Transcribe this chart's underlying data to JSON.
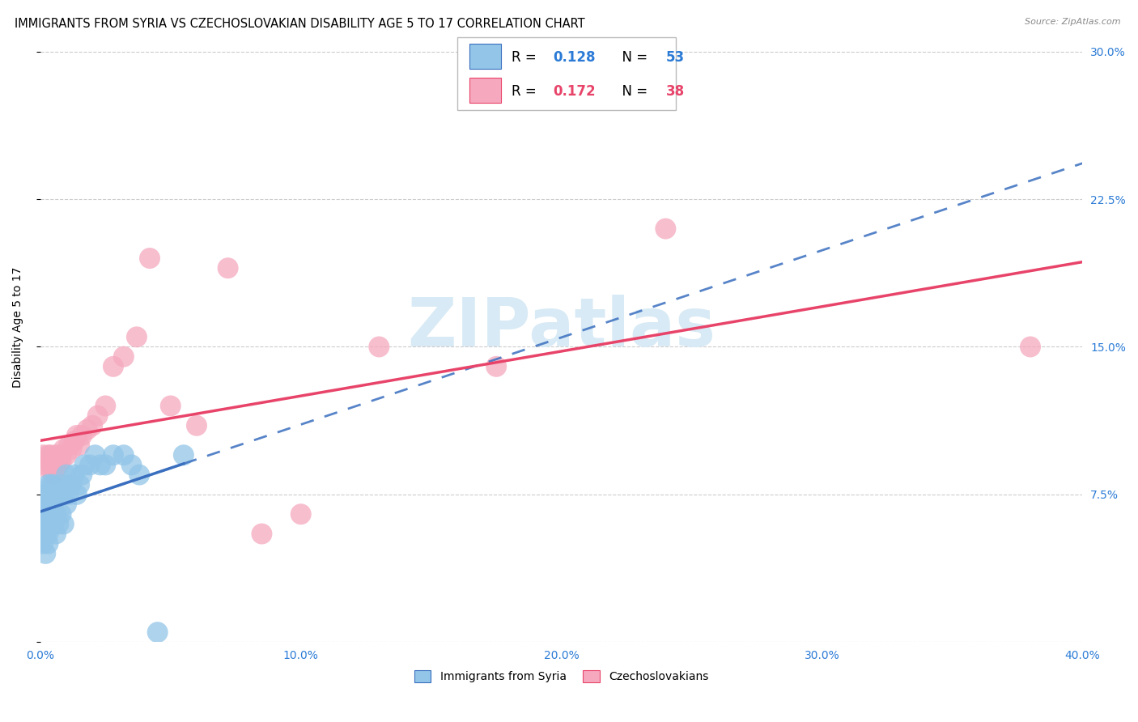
{
  "title": "IMMIGRANTS FROM SYRIA VS CZECHOSLOVAKIAN DISABILITY AGE 5 TO 17 CORRELATION CHART",
  "source": "Source: ZipAtlas.com",
  "ylabel": "Disability Age 5 to 17",
  "xlim": [
    0.0,
    0.4
  ],
  "ylim": [
    0.0,
    0.32
  ],
  "xticks": [
    0.0,
    0.1,
    0.2,
    0.3,
    0.4
  ],
  "xtick_labels": [
    "0.0%",
    "10.0%",
    "20.0%",
    "30.0%",
    "40.0%"
  ],
  "ytick_labels_right": [
    "",
    "7.5%",
    "15.0%",
    "22.5%",
    "30.0%"
  ],
  "yticks_right": [
    0.0,
    0.075,
    0.15,
    0.225,
    0.3
  ],
  "color_syria": "#92C5E8",
  "color_czech": "#F5A8BE",
  "color_syria_line": "#3A6FBF",
  "color_czech_line": "#E8446A",
  "color_grid": "#CCCCCC",
  "watermark_color": "#D8EAF5",
  "syria_x": [
    0.001,
    0.001,
    0.001,
    0.001,
    0.002,
    0.002,
    0.002,
    0.002,
    0.002,
    0.002,
    0.003,
    0.003,
    0.003,
    0.003,
    0.003,
    0.003,
    0.004,
    0.004,
    0.004,
    0.004,
    0.004,
    0.005,
    0.005,
    0.005,
    0.005,
    0.006,
    0.006,
    0.006,
    0.007,
    0.007,
    0.008,
    0.008,
    0.009,
    0.009,
    0.01,
    0.01,
    0.011,
    0.012,
    0.013,
    0.014,
    0.015,
    0.016,
    0.017,
    0.019,
    0.021,
    0.023,
    0.025,
    0.028,
    0.032,
    0.035,
    0.038,
    0.045,
    0.055
  ],
  "syria_y": [
    0.05,
    0.055,
    0.06,
    0.065,
    0.045,
    0.055,
    0.06,
    0.065,
    0.07,
    0.075,
    0.05,
    0.055,
    0.06,
    0.065,
    0.07,
    0.08,
    0.06,
    0.065,
    0.07,
    0.075,
    0.08,
    0.06,
    0.065,
    0.07,
    0.08,
    0.055,
    0.065,
    0.075,
    0.06,
    0.075,
    0.065,
    0.08,
    0.06,
    0.075,
    0.07,
    0.085,
    0.075,
    0.08,
    0.085,
    0.075,
    0.08,
    0.085,
    0.09,
    0.09,
    0.095,
    0.09,
    0.09,
    0.095,
    0.095,
    0.09,
    0.085,
    0.005,
    0.095
  ],
  "czech_x": [
    0.001,
    0.002,
    0.003,
    0.003,
    0.004,
    0.004,
    0.005,
    0.005,
    0.006,
    0.006,
    0.007,
    0.008,
    0.008,
    0.009,
    0.01,
    0.011,
    0.012,
    0.013,
    0.014,
    0.015,
    0.016,
    0.018,
    0.02,
    0.022,
    0.025,
    0.028,
    0.032,
    0.037,
    0.042,
    0.05,
    0.06,
    0.072,
    0.085,
    0.1,
    0.13,
    0.175,
    0.24,
    0.38
  ],
  "czech_y": [
    0.095,
    0.09,
    0.088,
    0.095,
    0.09,
    0.095,
    0.085,
    0.092,
    0.088,
    0.095,
    0.09,
    0.092,
    0.095,
    0.098,
    0.095,
    0.1,
    0.098,
    0.102,
    0.105,
    0.1,
    0.105,
    0.108,
    0.11,
    0.115,
    0.12,
    0.14,
    0.145,
    0.155,
    0.195,
    0.12,
    0.11,
    0.19,
    0.055,
    0.065,
    0.15,
    0.14,
    0.21,
    0.15
  ],
  "background_color": "#FFFFFF",
  "title_fontsize": 10.5,
  "axis_label_fontsize": 10,
  "tick_fontsize": 10,
  "legend_fontsize": 12
}
